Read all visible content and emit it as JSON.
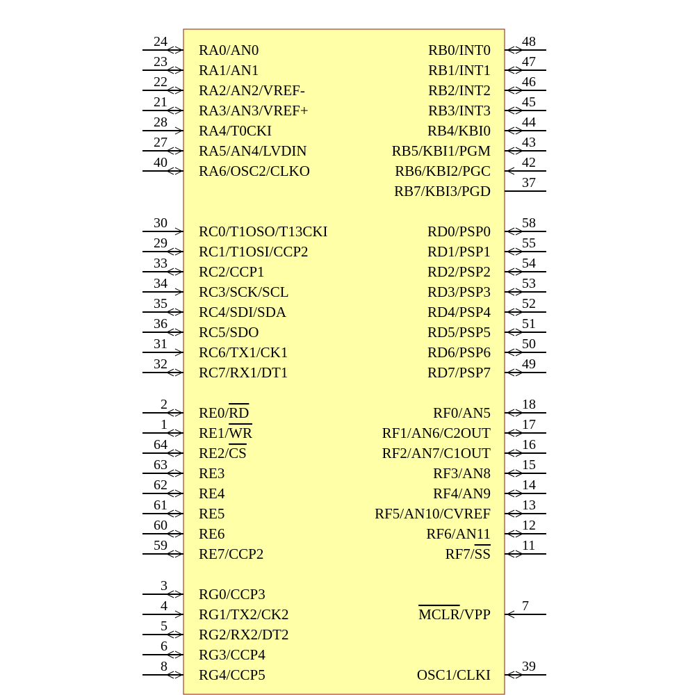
{
  "symbol": {
    "left_pins": [
      {
        "row": 0,
        "number": "24",
        "arrow": "io",
        "parts": [
          {
            "text": "RA0/AN0"
          }
        ]
      },
      {
        "row": 1,
        "number": "23",
        "arrow": "io",
        "parts": [
          {
            "text": "RA1/AN1"
          }
        ]
      },
      {
        "row": 2,
        "number": "22",
        "arrow": "io",
        "parts": [
          {
            "text": "RA2/AN2/VREF-"
          }
        ]
      },
      {
        "row": 3,
        "number": "21",
        "arrow": "io",
        "parts": [
          {
            "text": "RA3/AN3/VREF+"
          }
        ]
      },
      {
        "row": 4,
        "number": "28",
        "arrow": "in",
        "parts": [
          {
            "text": "RA4/T0CKI"
          }
        ]
      },
      {
        "row": 5,
        "number": "27",
        "arrow": "io",
        "parts": [
          {
            "text": "RA5/AN4/LVDIN"
          }
        ]
      },
      {
        "row": 6,
        "number": "40",
        "arrow": "io",
        "parts": [
          {
            "text": "RA6/OSC2/CLKO"
          }
        ]
      },
      {
        "row": 9,
        "number": "30",
        "arrow": "in",
        "parts": [
          {
            "text": "RC0/T1OSO/T13CKI"
          }
        ]
      },
      {
        "row": 10,
        "number": "29",
        "arrow": "io",
        "parts": [
          {
            "text": "RC1/T1OSI/CCP2"
          }
        ]
      },
      {
        "row": 11,
        "number": "33",
        "arrow": "io",
        "parts": [
          {
            "text": "RC2/CCP1"
          }
        ]
      },
      {
        "row": 12,
        "number": "34",
        "arrow": "in",
        "parts": [
          {
            "text": "RC3/SCK/SCL"
          }
        ]
      },
      {
        "row": 13,
        "number": "35",
        "arrow": "io",
        "parts": [
          {
            "text": "RC4/SDI/SDA"
          }
        ]
      },
      {
        "row": 14,
        "number": "36",
        "arrow": "io",
        "parts": [
          {
            "text": "RC5/SDO"
          }
        ]
      },
      {
        "row": 15,
        "number": "31",
        "arrow": "in",
        "parts": [
          {
            "text": "RC6/TX1/CK1"
          }
        ]
      },
      {
        "row": 16,
        "number": "32",
        "arrow": "io",
        "parts": [
          {
            "text": "RC7/RX1/DT1"
          }
        ]
      },
      {
        "row": 18,
        "number": "2",
        "arrow": "io",
        "parts": [
          {
            "text": "RE0/"
          },
          {
            "text": "RD",
            "overline": true
          }
        ]
      },
      {
        "row": 19,
        "number": "1",
        "arrow": "io",
        "parts": [
          {
            "text": "RE1/"
          },
          {
            "text": "WR",
            "overline": true
          }
        ]
      },
      {
        "row": 20,
        "number": "64",
        "arrow": "io",
        "parts": [
          {
            "text": "RE2/"
          },
          {
            "text": "CS",
            "overline": true
          }
        ]
      },
      {
        "row": 21,
        "number": "63",
        "arrow": "io",
        "parts": [
          {
            "text": "RE3"
          }
        ]
      },
      {
        "row": 22,
        "number": "62",
        "arrow": "io",
        "parts": [
          {
            "text": "RE4"
          }
        ]
      },
      {
        "row": 23,
        "number": "61",
        "arrow": "io",
        "parts": [
          {
            "text": "RE5"
          }
        ]
      },
      {
        "row": 24,
        "number": "60",
        "arrow": "io",
        "parts": [
          {
            "text": "RE6"
          }
        ]
      },
      {
        "row": 25,
        "number": "59",
        "arrow": "io",
        "parts": [
          {
            "text": "RE7/CCP2"
          }
        ]
      },
      {
        "row": 27,
        "number": "3",
        "arrow": "io",
        "parts": [
          {
            "text": "RG0/CCP3"
          }
        ]
      },
      {
        "row": 28,
        "number": "4",
        "arrow": "in",
        "parts": [
          {
            "text": "RG1/TX2/CK2"
          }
        ]
      },
      {
        "row": 29,
        "number": "5",
        "arrow": "io",
        "parts": [
          {
            "text": "RG2/RX2/DT2"
          }
        ]
      },
      {
        "row": 30,
        "number": "6",
        "arrow": "io",
        "parts": [
          {
            "text": "RG3/CCP4"
          }
        ]
      },
      {
        "row": 31,
        "number": "8",
        "arrow": "io",
        "parts": [
          {
            "text": "RG4/CCP5"
          }
        ]
      }
    ],
    "right_pins": [
      {
        "row": 0,
        "number": "48",
        "arrow": "io",
        "parts": [
          {
            "text": "RB0/INT0"
          }
        ]
      },
      {
        "row": 1,
        "number": "47",
        "arrow": "io",
        "parts": [
          {
            "text": "RB1/INT1"
          }
        ]
      },
      {
        "row": 2,
        "number": "46",
        "arrow": "io",
        "parts": [
          {
            "text": "RB2/INT2"
          }
        ]
      },
      {
        "row": 3,
        "number": "45",
        "arrow": "io",
        "parts": [
          {
            "text": "RB3/INT3"
          }
        ]
      },
      {
        "row": 4,
        "number": "44",
        "arrow": "io",
        "parts": [
          {
            "text": "RB4/KBI0"
          }
        ]
      },
      {
        "row": 5,
        "number": "43",
        "arrow": "io",
        "parts": [
          {
            "text": "RB5/KBI1/PGM"
          }
        ]
      },
      {
        "row": 6,
        "number": "42",
        "arrow": "in",
        "parts": [
          {
            "text": "RB6/KBI2/PGC"
          }
        ]
      },
      {
        "row": 7,
        "number": "37",
        "arrow": "none",
        "parts": [
          {
            "text": "RB7/KBI3/PGD"
          }
        ]
      },
      {
        "row": 9,
        "number": "58",
        "arrow": "io",
        "parts": [
          {
            "text": "RD0/PSP0"
          }
        ]
      },
      {
        "row": 10,
        "number": "55",
        "arrow": "io",
        "parts": [
          {
            "text": "RD1/PSP1"
          }
        ]
      },
      {
        "row": 11,
        "number": "54",
        "arrow": "io",
        "parts": [
          {
            "text": "RD2/PSP2"
          }
        ]
      },
      {
        "row": 12,
        "number": "53",
        "arrow": "io",
        "parts": [
          {
            "text": "RD3/PSP3"
          }
        ]
      },
      {
        "row": 13,
        "number": "52",
        "arrow": "io",
        "parts": [
          {
            "text": "RD4/PSP4"
          }
        ]
      },
      {
        "row": 14,
        "number": "51",
        "arrow": "io",
        "parts": [
          {
            "text": "RD5/PSP5"
          }
        ]
      },
      {
        "row": 15,
        "number": "50",
        "arrow": "io",
        "parts": [
          {
            "text": "RD6/PSP6"
          }
        ]
      },
      {
        "row": 16,
        "number": "49",
        "arrow": "io",
        "parts": [
          {
            "text": "RD7/PSP7"
          }
        ]
      },
      {
        "row": 18,
        "number": "18",
        "arrow": "io",
        "parts": [
          {
            "text": "RF0/AN5"
          }
        ]
      },
      {
        "row": 19,
        "number": "17",
        "arrow": "io",
        "parts": [
          {
            "text": "RF1/AN6/C2OUT"
          }
        ]
      },
      {
        "row": 20,
        "number": "16",
        "arrow": "io",
        "parts": [
          {
            "text": "RF2/AN7/C1OUT"
          }
        ]
      },
      {
        "row": 21,
        "number": "15",
        "arrow": "io",
        "parts": [
          {
            "text": "RF3/AN8"
          }
        ]
      },
      {
        "row": 22,
        "number": "14",
        "arrow": "io",
        "parts": [
          {
            "text": "RF4/AN9"
          }
        ]
      },
      {
        "row": 23,
        "number": "13",
        "arrow": "io",
        "parts": [
          {
            "text": "RF5/AN10/CVREF"
          }
        ]
      },
      {
        "row": 24,
        "number": "12",
        "arrow": "io",
        "parts": [
          {
            "text": "RF6/AN11"
          }
        ]
      },
      {
        "row": 25,
        "number": "11",
        "arrow": "io",
        "parts": [
          {
            "text": "RF7/"
          },
          {
            "text": "SS",
            "overline": true
          }
        ]
      },
      {
        "row": 28,
        "number": "7",
        "arrow": "in",
        "parts": [
          {
            "text": "MCLR",
            "overline": true
          },
          {
            "text": "/VPP"
          }
        ]
      },
      {
        "row": 31,
        "number": "39",
        "arrow": "io",
        "parts": [
          {
            "text": "OSC1/CLKI"
          }
        ]
      }
    ]
  }
}
